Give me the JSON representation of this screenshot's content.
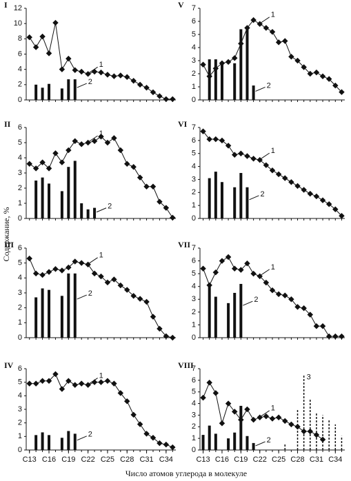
{
  "y_label": "Содержание, %",
  "x_label": "Число атомов углерода в молекуле",
  "chart_data": [
    {
      "type": "combo",
      "title": "I",
      "x": [
        13,
        14,
        15,
        16,
        17,
        18,
        19,
        20,
        21,
        22,
        23,
        24,
        25,
        26,
        27,
        28,
        29,
        30,
        31,
        32,
        33,
        34,
        35
      ],
      "xlim": [
        12.5,
        35.5
      ],
      "ylim": [
        0,
        12
      ],
      "yticks": [
        0,
        2,
        4,
        6,
        8,
        10,
        12
      ],
      "series": [
        {
          "name": "1",
          "kind": "line",
          "color": "#111111",
          "values": [
            8.2,
            6.9,
            8.3,
            6.1,
            10.1,
            4.0,
            5.4,
            3.9,
            3.7,
            3.4,
            3.7,
            3.6,
            3.3,
            3.1,
            3.2,
            3.0,
            2.5,
            2.0,
            1.6,
            1.0,
            0.5,
            0.1,
            0.1
          ]
        },
        {
          "name": "2",
          "kind": "bar",
          "color": "#111111",
          "values": [
            null,
            2.0,
            1.6,
            2.1,
            null,
            1.5,
            2.7,
            2.7,
            null,
            null,
            null,
            null,
            null,
            null,
            null,
            null,
            null,
            null,
            null,
            null,
            null,
            null,
            null
          ]
        }
      ]
    },
    {
      "type": "combo",
      "title": "V",
      "x": [
        13,
        14,
        15,
        16,
        17,
        18,
        19,
        20,
        21,
        22,
        23,
        24,
        25,
        26,
        27,
        28,
        29,
        30,
        31,
        32,
        33,
        34,
        35
      ],
      "xlim": [
        12.5,
        35.5
      ],
      "ylim": [
        0,
        7
      ],
      "yticks": [
        0,
        1,
        2,
        3,
        4,
        5,
        6,
        7
      ],
      "series": [
        {
          "name": "1",
          "kind": "line",
          "color": "#111111",
          "values": [
            2.7,
            1.8,
            2.4,
            2.8,
            2.9,
            3.2,
            4.3,
            5.5,
            6.1,
            5.8,
            5.5,
            5.2,
            4.4,
            4.5,
            3.3,
            3.0,
            2.5,
            2.0,
            2.1,
            1.8,
            1.6,
            1.1,
            0.6
          ]
        },
        {
          "name": "2",
          "kind": "bar",
          "color": "#111111",
          "values": [
            null,
            3.1,
            3.1,
            2.9,
            null,
            2.8,
            5.4,
            5.5,
            1.1,
            null,
            null,
            null,
            null,
            null,
            null,
            null,
            null,
            null,
            null,
            null,
            null,
            null,
            null
          ]
        }
      ]
    },
    {
      "type": "combo",
      "title": "II",
      "x": [
        13,
        14,
        15,
        16,
        17,
        18,
        19,
        20,
        21,
        22,
        23,
        24,
        25,
        26,
        27,
        28,
        29,
        30,
        31,
        32,
        33,
        34,
        35
      ],
      "xlim": [
        12.5,
        35.5
      ],
      "ylim": [
        0,
        6
      ],
      "yticks": [
        0,
        1,
        2,
        3,
        4,
        5,
        6
      ],
      "series": [
        {
          "name": "1",
          "kind": "line",
          "color": "#111111",
          "values": [
            3.6,
            3.3,
            3.7,
            3.3,
            4.3,
            3.7,
            4.5,
            5.1,
            4.9,
            5.0,
            5.1,
            5.4,
            5.0,
            5.3,
            4.5,
            3.6,
            3.4,
            2.7,
            2.1,
            2.1,
            1.1,
            0.7,
            0.05
          ]
        },
        {
          "name": "2",
          "kind": "bar",
          "color": "#111111",
          "values": [
            null,
            2.5,
            2.7,
            2.3,
            null,
            1.8,
            3.4,
            3.8,
            1.0,
            0.6,
            0.7,
            null,
            null,
            null,
            null,
            null,
            null,
            null,
            null,
            null,
            null,
            null,
            null
          ]
        }
      ]
    },
    {
      "type": "combo",
      "title": "VI",
      "x": [
        13,
        14,
        15,
        16,
        17,
        18,
        19,
        20,
        21,
        22,
        23,
        24,
        25,
        26,
        27,
        28,
        29,
        30,
        31,
        32,
        33,
        34,
        35
      ],
      "xlim": [
        12.5,
        35.5
      ],
      "ylim": [
        0,
        7
      ],
      "yticks": [
        0,
        1,
        2,
        3,
        4,
        5,
        6,
        7
      ],
      "series": [
        {
          "name": "1",
          "kind": "line",
          "color": "#111111",
          "values": [
            6.7,
            6.1,
            6.1,
            6.0,
            5.6,
            4.9,
            5.0,
            4.8,
            4.6,
            4.5,
            4.1,
            3.7,
            3.4,
            3.1,
            2.8,
            2.5,
            2.2,
            1.9,
            1.7,
            1.4,
            1.1,
            0.7,
            0.2
          ]
        },
        {
          "name": "2",
          "kind": "bar",
          "color": "#111111",
          "values": [
            null,
            3.1,
            3.6,
            2.8,
            null,
            2.4,
            3.5,
            2.4,
            null,
            null,
            null,
            null,
            null,
            null,
            null,
            null,
            null,
            null,
            null,
            null,
            null,
            null,
            null
          ]
        }
      ]
    },
    {
      "type": "combo",
      "title": "III",
      "x": [
        13,
        14,
        15,
        16,
        17,
        18,
        19,
        20,
        21,
        22,
        23,
        24,
        25,
        26,
        27,
        28,
        29,
        30,
        31,
        32,
        33,
        34,
        35
      ],
      "xlim": [
        12.5,
        35.5
      ],
      "ylim": [
        0,
        6
      ],
      "yticks": [
        0,
        1,
        2,
        3,
        4,
        5,
        6
      ],
      "series": [
        {
          "name": "1",
          "kind": "line",
          "color": "#111111",
          "values": [
            5.3,
            4.3,
            4.2,
            4.4,
            4.6,
            4.5,
            4.7,
            5.1,
            5.0,
            4.9,
            4.3,
            4.1,
            3.7,
            3.9,
            3.5,
            3.2,
            2.8,
            2.6,
            2.4,
            1.4,
            0.6,
            0.1,
            0
          ]
        },
        {
          "name": "2",
          "kind": "bar",
          "color": "#111111",
          "values": [
            null,
            2.7,
            3.3,
            3.2,
            null,
            2.8,
            4.3,
            4.3,
            null,
            null,
            null,
            null,
            null,
            null,
            null,
            null,
            null,
            null,
            null,
            null,
            null,
            null,
            null
          ]
        }
      ]
    },
    {
      "type": "combo",
      "title": "VII",
      "x": [
        13,
        14,
        15,
        16,
        17,
        18,
        19,
        20,
        21,
        22,
        23,
        24,
        25,
        26,
        27,
        28,
        29,
        30,
        31,
        32,
        33,
        34,
        35
      ],
      "xlim": [
        12.5,
        35.5
      ],
      "ylim": [
        0,
        7
      ],
      "yticks": [
        0,
        1,
        2,
        3,
        4,
        5,
        6,
        7
      ],
      "series": [
        {
          "name": "1",
          "kind": "line",
          "color": "#111111",
          "values": [
            5.4,
            4.1,
            5.1,
            6.0,
            6.3,
            5.4,
            5.3,
            5.8,
            5.0,
            4.8,
            4.3,
            3.7,
            3.4,
            3.3,
            3.0,
            2.4,
            2.3,
            1.8,
            0.9,
            0.9,
            0.1,
            0.1,
            0.1
          ]
        },
        {
          "name": "2",
          "kind": "bar",
          "color": "#111111",
          "values": [
            null,
            4.1,
            3.2,
            null,
            2.7,
            3.5,
            4.2,
            null,
            null,
            null,
            null,
            null,
            null,
            null,
            null,
            null,
            null,
            null,
            null,
            null,
            null,
            null,
            null
          ]
        }
      ]
    },
    {
      "type": "combo",
      "title": "IV",
      "x": [
        13,
        14,
        15,
        16,
        17,
        18,
        19,
        20,
        21,
        22,
        23,
        24,
        25,
        26,
        27,
        28,
        29,
        30,
        31,
        32,
        33,
        34,
        35
      ],
      "xlim": [
        12.5,
        35.5
      ],
      "ylim": [
        0,
        6
      ],
      "yticks": [
        0,
        1,
        2,
        3,
        4,
        5,
        6
      ],
      "xticks": [
        {
          "value": 13,
          "label": "C13"
        },
        {
          "value": 16,
          "label": "C16"
        },
        {
          "value": 19,
          "label": "C19"
        },
        {
          "value": 22,
          "label": "C22"
        },
        {
          "value": 25,
          "label": "C25"
        },
        {
          "value": 28,
          "label": "C28"
        },
        {
          "value": 31,
          "label": "C31"
        },
        {
          "value": 34,
          "label": "C34"
        }
      ],
      "series": [
        {
          "name": "1",
          "kind": "line",
          "color": "#111111",
          "values": [
            4.9,
            4.9,
            5.1,
            5.1,
            5.6,
            4.5,
            5.1,
            4.8,
            4.9,
            4.8,
            5.0,
            5.0,
            5.1,
            4.9,
            4.2,
            3.6,
            2.6,
            1.9,
            1.2,
            0.9,
            0.5,
            0.4,
            0.2
          ]
        },
        {
          "name": "2",
          "kind": "bar",
          "color": "#111111",
          "values": [
            null,
            1.1,
            1.3,
            1.1,
            null,
            0.9,
            1.4,
            1.2,
            null,
            null,
            null,
            null,
            null,
            null,
            null,
            null,
            null,
            null,
            null,
            null,
            null,
            null,
            null
          ]
        }
      ]
    },
    {
      "type": "combo",
      "title": "VIII",
      "x": [
        13,
        14,
        15,
        16,
        17,
        18,
        19,
        20,
        21,
        22,
        23,
        24,
        25,
        26,
        27,
        28,
        29,
        30,
        31,
        32,
        33,
        34,
        35
      ],
      "xlim": [
        12.5,
        35.5
      ],
      "ylim": [
        0,
        7
      ],
      "yticks": [
        0,
        1,
        2,
        3,
        4,
        5,
        6,
        7
      ],
      "xticks": [
        {
          "value": 13,
          "label": "C13"
        },
        {
          "value": 16,
          "label": "C16"
        },
        {
          "value": 19,
          "label": "C19"
        },
        {
          "value": 22,
          "label": "C22"
        },
        {
          "value": 25,
          "label": "C25"
        },
        {
          "value": 28,
          "label": "C28"
        },
        {
          "value": 31,
          "label": "C31"
        },
        {
          "value": 34,
          "label": "C34"
        }
      ],
      "series": [
        {
          "name": "1",
          "kind": "line",
          "color": "#111111",
          "values": [
            4.5,
            5.8,
            4.9,
            2.3,
            4.0,
            3.3,
            2.6,
            3.5,
            2.6,
            2.8,
            2.9,
            2.7,
            2.8,
            2.5,
            2.2,
            2.0,
            1.6,
            1.6,
            1.3,
            0.9,
            null,
            null,
            null
          ]
        },
        {
          "name": "2",
          "kind": "bar",
          "color": "#111111",
          "values": [
            1.3,
            2.1,
            1.4,
            null,
            1.0,
            1.5,
            3.8,
            1.2,
            0.6,
            null,
            null,
            null,
            null,
            null,
            null,
            null,
            null,
            null,
            null,
            null,
            null,
            null,
            null
          ]
        },
        {
          "name": "3",
          "kind": "dashbar",
          "color": "#111111",
          "values": [
            null,
            null,
            null,
            null,
            null,
            null,
            null,
            null,
            null,
            null,
            null,
            null,
            null,
            0.5,
            null,
            3.5,
            6.5,
            4.4,
            3.2,
            3.0,
            2.6,
            2.2,
            1.2
          ]
        }
      ]
    }
  ]
}
